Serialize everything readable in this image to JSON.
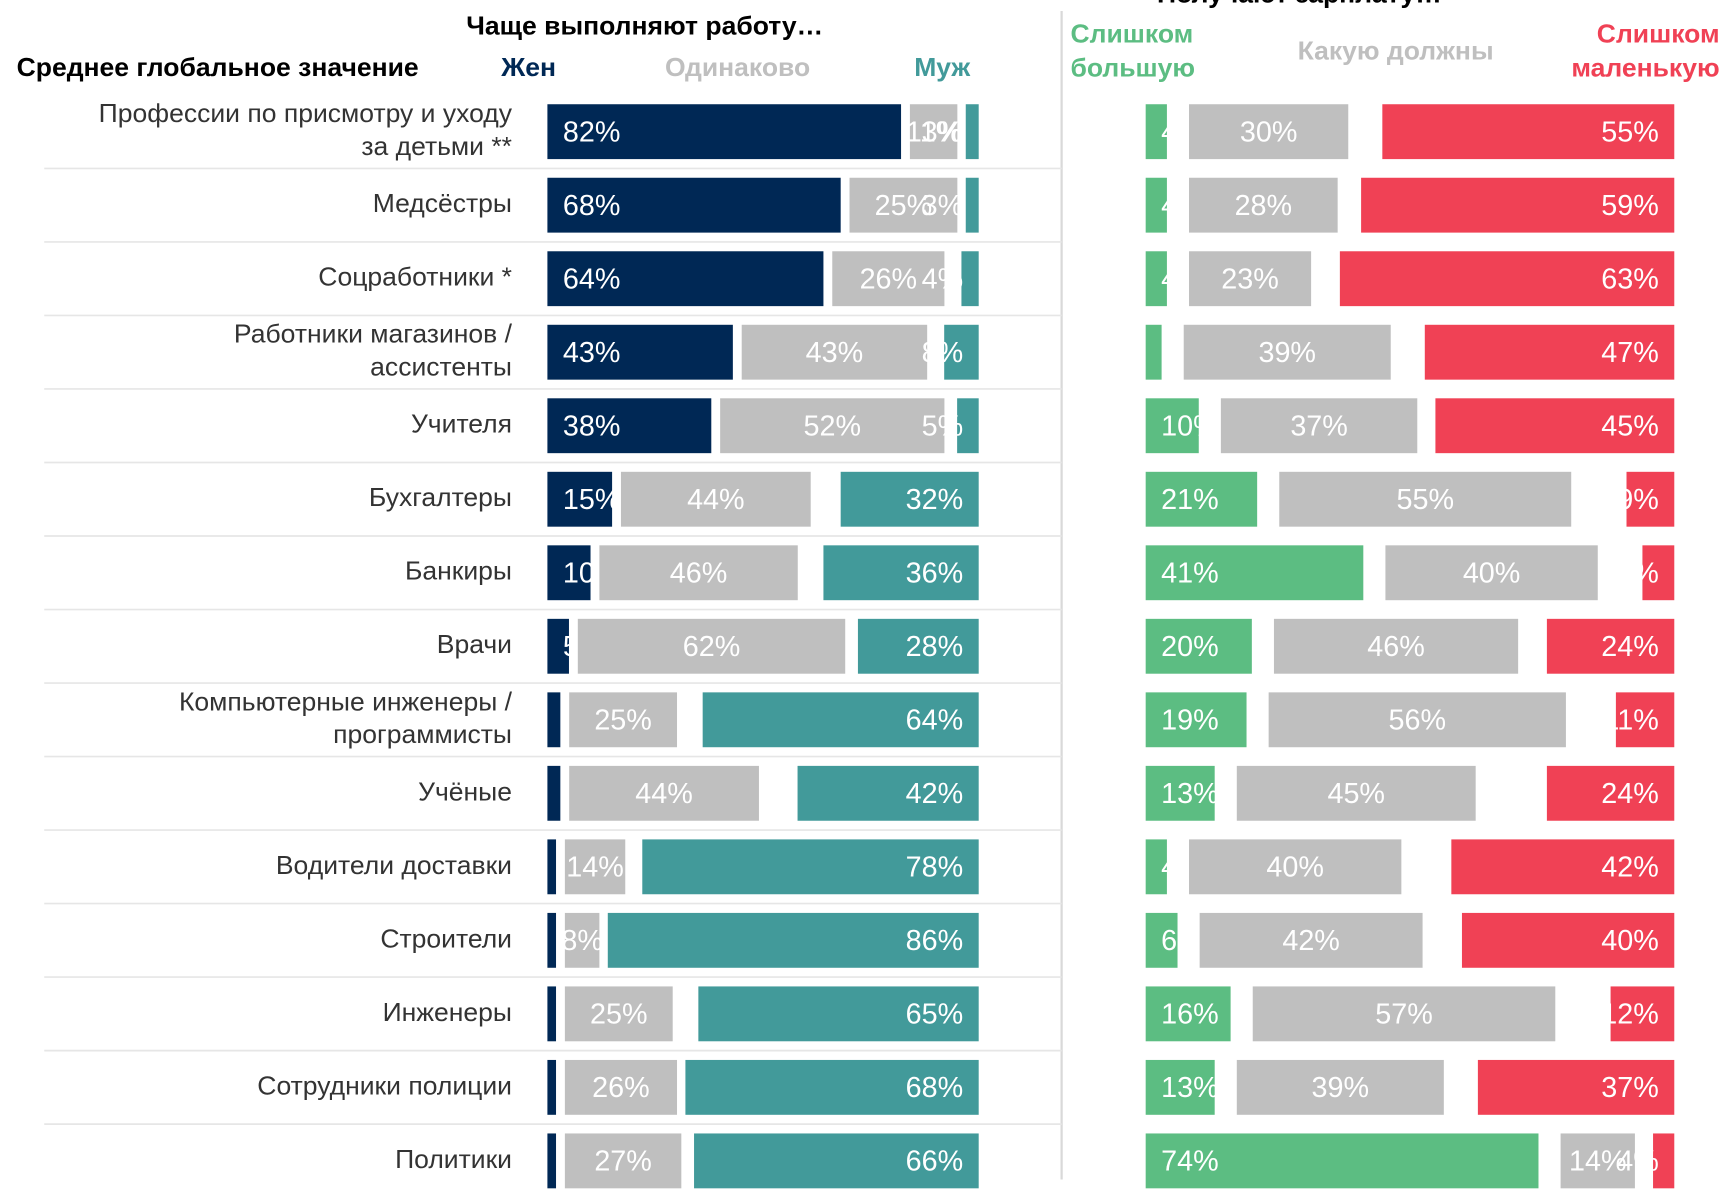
{
  "chart_data": [
    {
      "type": "bar",
      "orientation": "horizontal",
      "stacked": true,
      "title": "Чаще выполняют работу…",
      "subtitle": "Среднее глобальное значение",
      "categories": [
        "Профессии по присмотру и уходу за детьми **",
        "Медсёстры",
        "Соцработники *",
        "Работники магазинов / ассистенты",
        "Учителя",
        "Бухгалтеры",
        "Банкиры",
        "Врачи",
        "Компьютерные инженеры / программисты",
        "Учёные",
        "Водители доставки",
        "Строители",
        "Инженеры",
        "Сотрудники полиции",
        "Политики"
      ],
      "series": [
        {
          "name": "Жен",
          "color": "#002855",
          "values": [
            82,
            68,
            64,
            43,
            38,
            15,
            10,
            5,
            3,
            3,
            2,
            2,
            2,
            2,
            2
          ],
          "value_labels": [
            "82%",
            "68%",
            "64%",
            "43%",
            "38%",
            "15%",
            "10%",
            "5%",
            "3%",
            "3%",
            "2%",
            "2%",
            "2%",
            "2%",
            "2%"
          ]
        },
        {
          "name": "Одинаково",
          "color": "#bfbfbf",
          "values": [
            11,
            25,
            26,
            43,
            52,
            44,
            46,
            62,
            25,
            44,
            14,
            8,
            25,
            26,
            27
          ],
          "value_labels": [
            "11%",
            "25%",
            "26%",
            "43%",
            "52%",
            "44%",
            "46%",
            "62%",
            "25%",
            "44%",
            "14%",
            "8%",
            "25%",
            "26%",
            "27%"
          ]
        },
        {
          "name": "Муж",
          "color": "#429a9a",
          "values": [
            3,
            3,
            4,
            8,
            5,
            32,
            36,
            28,
            64,
            42,
            78,
            86,
            65,
            68,
            66
          ],
          "value_labels": [
            "3%",
            "3%",
            "4%",
            "8%",
            "5%",
            "32%",
            "36%",
            "28%",
            "64%",
            "42%",
            "78%",
            "86%",
            "65%",
            "68%",
            "66%"
          ]
        }
      ]
    },
    {
      "type": "bar",
      "orientation": "horizontal",
      "stacked": true,
      "title": "Получают зарплату…",
      "series": [
        {
          "name": "Слишком большую",
          "color": "#5cbd82",
          "values": [
            4,
            4,
            4,
            3,
            10,
            21,
            41,
            20,
            19,
            13,
            4,
            6,
            16,
            13,
            74
          ],
          "value_labels": [
            "4%",
            "4%",
            "4%",
            "3%",
            "10%",
            "21%",
            "41%",
            "20%",
            "19%",
            "13%",
            "4%",
            "6%",
            "16%",
            "13%",
            "74%"
          ]
        },
        {
          "name": "Какую должны",
          "color": "#bfbfbf",
          "values": [
            30,
            28,
            23,
            39,
            37,
            55,
            40,
            46,
            56,
            45,
            40,
            42,
            57,
            39,
            14
          ],
          "value_labels": [
            "30%",
            "28%",
            "23%",
            "39%",
            "37%",
            "55%",
            "40%",
            "46%",
            "56%",
            "45%",
            "40%",
            "42%",
            "57%",
            "39%",
            "14%"
          ]
        },
        {
          "name": "Слишком маленькую",
          "color": "#f04155",
          "values": [
            55,
            59,
            63,
            47,
            45,
            9,
            6,
            24,
            11,
            24,
            42,
            40,
            12,
            37,
            4
          ],
          "value_labels": [
            "55%",
            "59%",
            "63%",
            "47%",
            "45%",
            "9%",
            "6%",
            "24%",
            "11%",
            "24%",
            "42%",
            "40%",
            "12%",
            "37%",
            "4%"
          ]
        }
      ]
    }
  ]
}
